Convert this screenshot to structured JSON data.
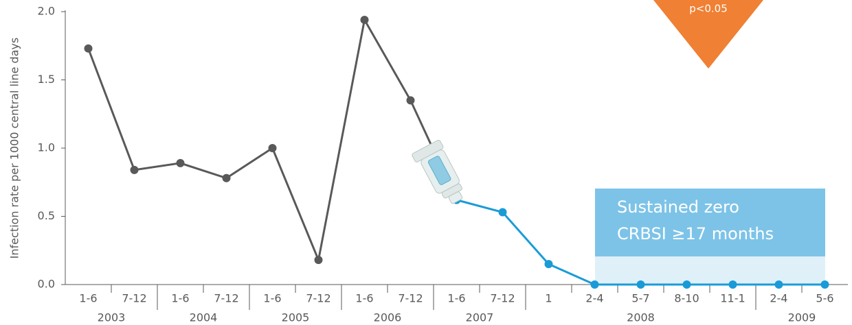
{
  "chart_data": {
    "type": "line",
    "y_label": "Infection rate per 1000 central line days",
    "categories": [
      "1-6",
      "7-12",
      "1-6",
      "7-12",
      "1-6",
      "7-12",
      "1-6",
      "7-12",
      "1-6",
      "7-12",
      "1",
      "2-4",
      "5-7",
      "8-10",
      "11-1",
      "2-4",
      "5-6"
    ],
    "x_groups": [
      {
        "label": "2003",
        "categories": 2
      },
      {
        "label": "2004",
        "categories": 2
      },
      {
        "label": "2005",
        "categories": 2
      },
      {
        "label": "2006",
        "categories": 2
      },
      {
        "label": "2007",
        "categories": 2
      },
      {
        "label": "2008",
        "categories": 5
      },
      {
        "label": "2009",
        "categories": 2
      }
    ],
    "series": [
      {
        "color": "#595959",
        "values": [
          1.73,
          0.84,
          0.89,
          0.78,
          1.0,
          0.18,
          1.94,
          1.35,
          null,
          null,
          null,
          null,
          null,
          null,
          null,
          null,
          null
        ]
      },
      {
        "color": "#1a9bd7",
        "values": [
          null,
          null,
          null,
          null,
          null,
          null,
          null,
          null,
          0.62,
          0.53,
          0.15,
          0,
          0,
          0,
          0,
          0,
          0
        ]
      }
    ],
    "ylim": [
      0,
      2.0
    ],
    "yticks": [
      {
        "value": 0,
        "label": "0.0"
      },
      {
        "value": 0.5,
        "label": "0.5"
      },
      {
        "value": 1.0,
        "label": "1.0"
      },
      {
        "value": 1.5,
        "label": "1.5"
      },
      {
        "value": 2.0,
        "label": "2.0"
      }
    ],
    "annotations": {
      "box": [
        "Sustained zero",
        "CRBSI ≥17 months"
      ],
      "p_value": "p<0.05"
    }
  }
}
